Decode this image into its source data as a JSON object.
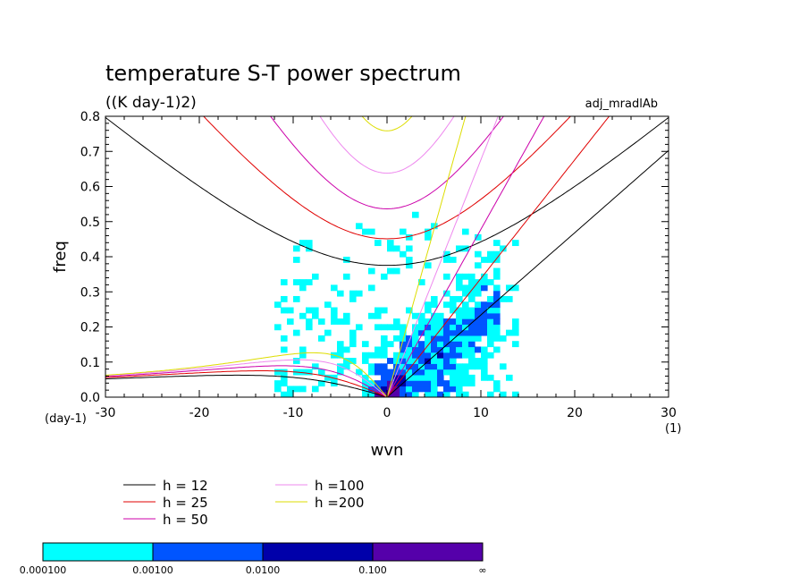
{
  "chart_data": {
    "type": "heatmap",
    "title": "temperature S-T power spectrum",
    "subtitle": "((K day-1)2)",
    "run_label": "adj_mradlAb",
    "xlabel": "wvn",
    "ylabel": "freq",
    "x_unit": "(1)",
    "y_unit": "(day-1)",
    "xlim": [
      -30,
      30
    ],
    "ylim": [
      0,
      0.8
    ],
    "x_ticks": [
      "-30",
      "-20",
      "-10",
      "0",
      "10",
      "20",
      "30"
    ],
    "y_ticks": [
      "0.0",
      "0.1",
      "0.2",
      "0.3",
      "0.4",
      "0.5",
      "0.6",
      "0.7",
      "0.8"
    ],
    "dispersion_curves": [
      {
        "name": "h = 12",
        "h": 12,
        "color": "#000000"
      },
      {
        "name": "h = 25",
        "h": 25,
        "color": "#e00000"
      },
      {
        "name": "h = 50",
        "h": 50,
        "color": "#cc00aa"
      },
      {
        "name": "h =100",
        "h": 100,
        "color": "#ee88ee"
      },
      {
        "name": "h =200",
        "h": 200,
        "color": "#dddd00"
      }
    ],
    "colorbar": {
      "labels": [
        "0.000100",
        "0.00100",
        "0.0100",
        "0.100",
        "∞"
      ],
      "colors": [
        "#00ffff",
        "#0055ff",
        "#0000aa",
        "#5500aa"
      ]
    }
  }
}
